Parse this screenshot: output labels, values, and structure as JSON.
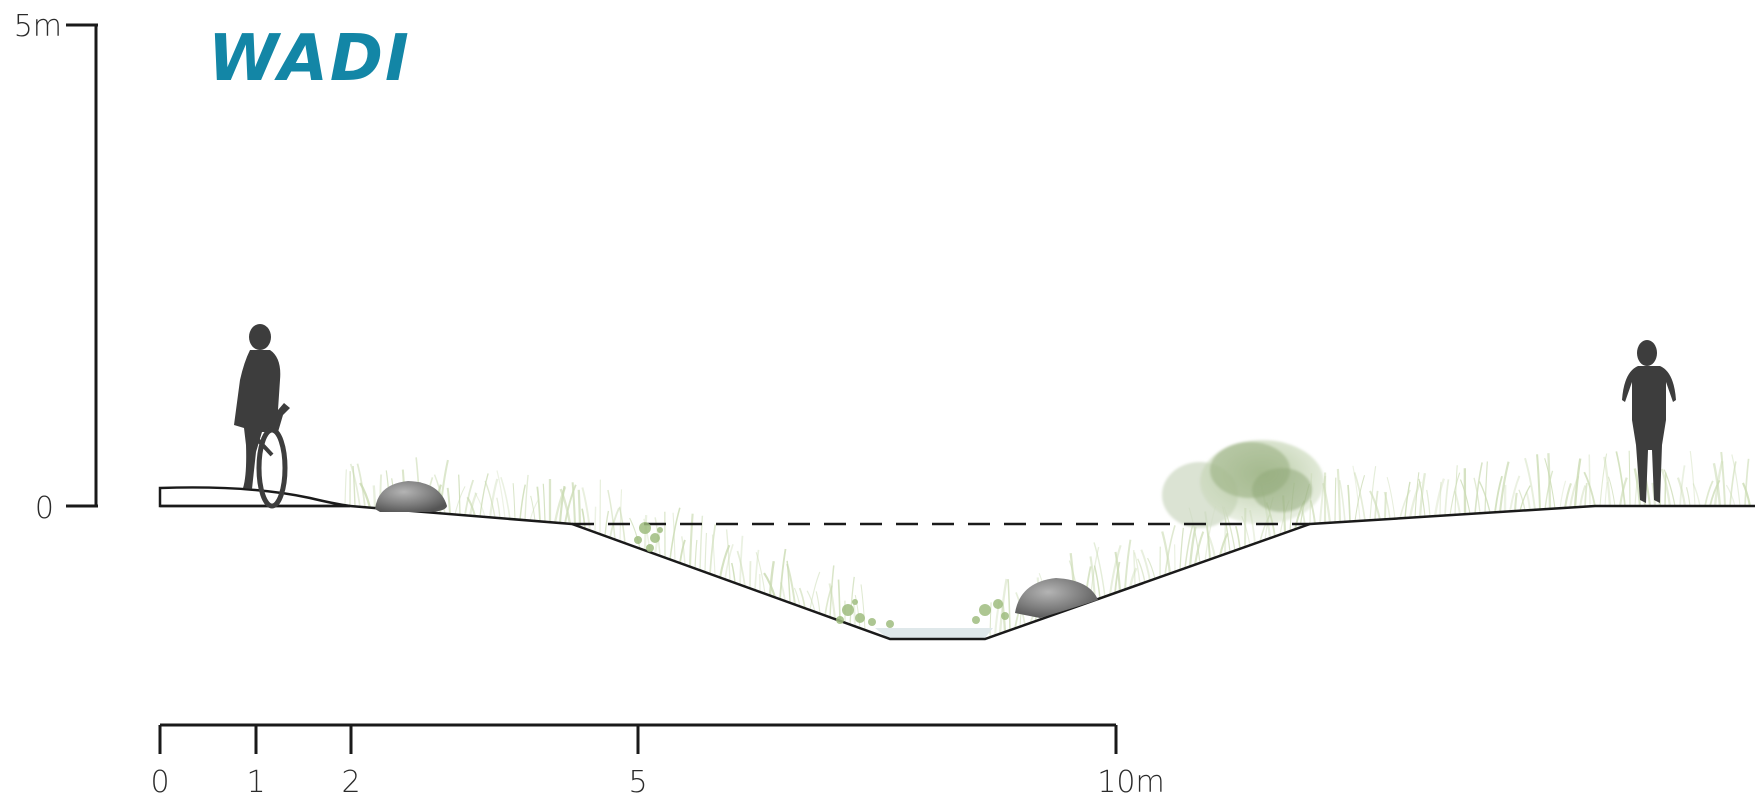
{
  "title": "WADI",
  "vertical_scale": {
    "top_label": "5m",
    "zero_label": "0"
  },
  "horizontal_scale": {
    "labels": [
      "0",
      "1",
      "2",
      "5",
      "10m"
    ]
  },
  "colors": {
    "title": "#1386a6",
    "ink": "#1a1a1a",
    "silhouette": "#3d3d3d",
    "grass": "#b9cf9a",
    "shrub": "#8fa878",
    "rock": "#7d7d7d",
    "water": "#dfe8ea"
  },
  "icons": {
    "cyclist": "cyclist-silhouette-icon",
    "pedestrian": "pedestrian-silhouette-icon",
    "rock": "rock-icon",
    "shrub": "shrub-icon",
    "grass": "grass-tuft-icon"
  }
}
